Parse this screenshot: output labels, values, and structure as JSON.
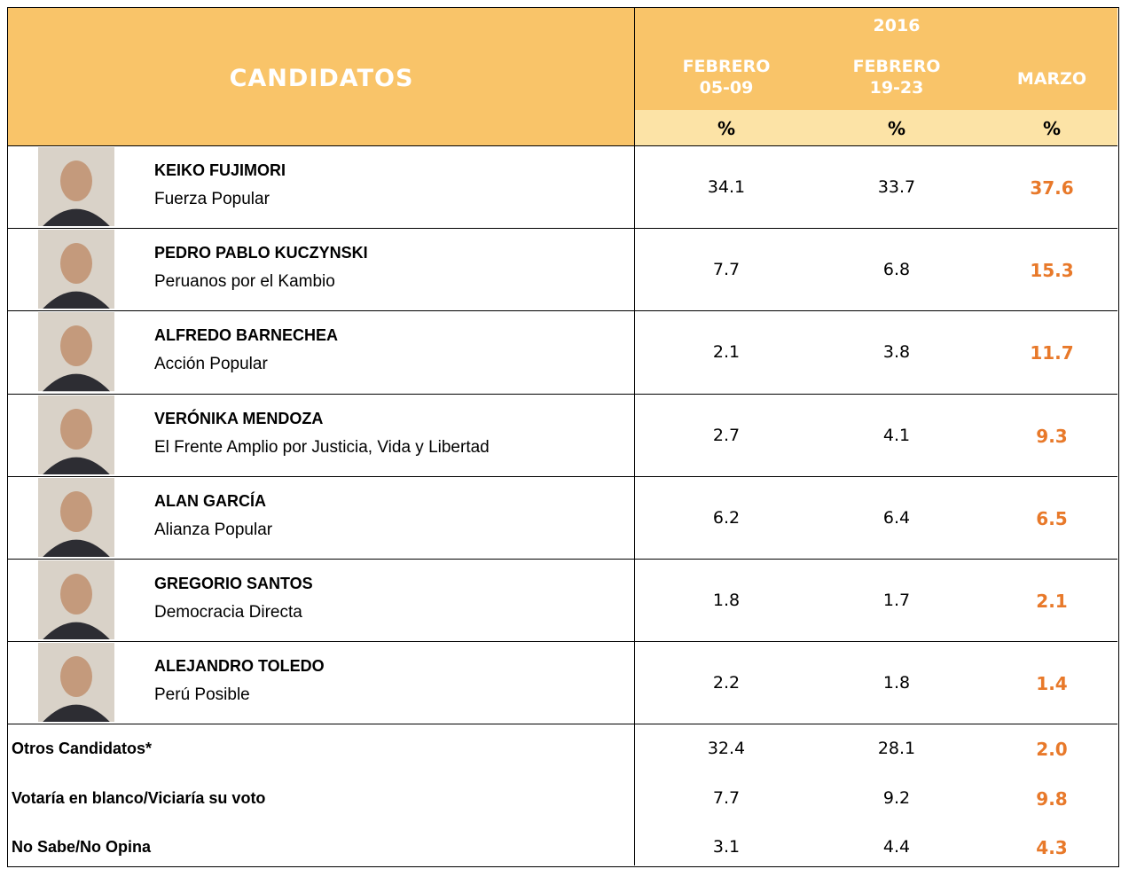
{
  "header": {
    "title": "CANDIDATOS",
    "year": "2016",
    "columns": [
      {
        "label": "FEBRERO",
        "dates": "05-09",
        "unit": "%"
      },
      {
        "label": "FEBRERO",
        "dates": "19-23",
        "unit": "%"
      },
      {
        "label": "MARZO",
        "unit": "%"
      }
    ]
  },
  "candidates": [
    {
      "name": "KEIKO FUJIMORI",
      "party": "Fuerza Popular",
      "values": [
        "34.1",
        "33.7",
        "37.6"
      ]
    },
    {
      "name": "PEDRO PABLO KUCZYNSKI",
      "party": "Peruanos por el Kambio",
      "values": [
        "7.7",
        "6.8",
        "15.3"
      ]
    },
    {
      "name": "ALFREDO BARNECHEA",
      "party": "Acción Popular",
      "values": [
        "2.1",
        "3.8",
        "11.7"
      ]
    },
    {
      "name": "VERÓNIKA MENDOZA",
      "party": "El Frente Amplio por Justicia, Vida y Libertad",
      "values": [
        "2.7",
        "4.1",
        "9.3"
      ]
    },
    {
      "name": "ALAN GARCÍA",
      "party": "Alianza Popular",
      "values": [
        "6.2",
        "6.4",
        "6.5"
      ]
    },
    {
      "name": "GREGORIO SANTOS",
      "party": "Democracia Directa",
      "values": [
        "1.8",
        "1.7",
        "2.1"
      ]
    },
    {
      "name": "ALEJANDRO TOLEDO",
      "party": "Perú Posible",
      "values": [
        "2.2",
        "1.8",
        "1.4"
      ]
    }
  ],
  "others": [
    {
      "label": "Otros Candidatos*",
      "values": [
        "32.4",
        "28.1",
        "2.0"
      ]
    },
    {
      "label": "Votaría en blanco/Viciaría su voto",
      "values": [
        "7.7",
        "9.2",
        "9.8"
      ]
    },
    {
      "label": "No Sabe/No Opina",
      "values": [
        "3.1",
        "4.4",
        "4.3"
      ]
    }
  ]
}
